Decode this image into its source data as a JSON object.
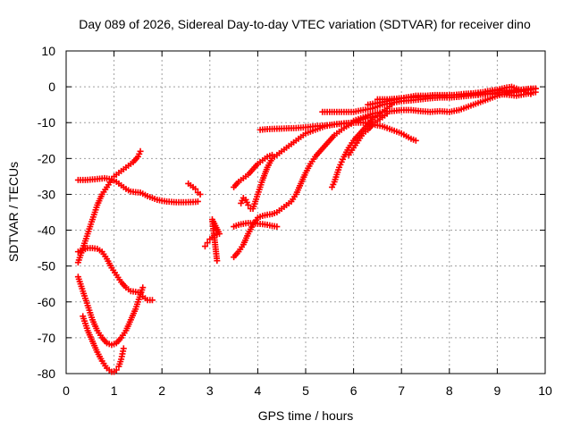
{
  "chart_data": {
    "type": "scatter",
    "title": "Day 089 of 2026, Sidereal Day-to-day VTEC variation (SDTVAR) for receiver dino",
    "xlabel": "GPS time / hours",
    "ylabel": "SDTVAR / TECUs",
    "xlim": [
      0,
      10
    ],
    "ylim": [
      -80,
      10
    ],
    "xticks": [
      "0",
      "1",
      "2",
      "3",
      "4",
      "5",
      "6",
      "7",
      "8",
      "9",
      "10"
    ],
    "yticks": [
      "10",
      "0",
      "-10",
      "-20",
      "-30",
      "-40",
      "-50",
      "-60",
      "-70",
      "-80"
    ],
    "grid": true,
    "marker": "plus",
    "color": "#ff0000",
    "series": [
      {
        "x": [
          0.25,
          0.35,
          0.45,
          0.55,
          0.65,
          0.75,
          0.85,
          0.95,
          1.0,
          1.1,
          1.2,
          1.3,
          1.4,
          1.5,
          1.55
        ],
        "y": [
          -49,
          -45,
          -41,
          -37,
          -33,
          -30,
          -28,
          -26,
          -25,
          -24,
          -23,
          -22,
          -21,
          -19.5,
          -18
        ]
      },
      {
        "x": [
          0.25,
          0.4,
          0.6,
          0.8,
          0.95,
          1.05,
          1.15,
          1.25,
          1.35,
          1.45,
          1.55,
          1.7,
          1.9,
          2.1,
          2.3,
          2.5,
          2.7,
          2.75
        ],
        "y": [
          -26,
          -26,
          -25.8,
          -25.5,
          -25.8,
          -26.5,
          -27.5,
          -28.5,
          -29.2,
          -29.4,
          -29.5,
          -30.5,
          -31.5,
          -32,
          -32.2,
          -32.2,
          -32.1,
          -32
        ]
      },
      {
        "x": [
          0.25,
          0.35,
          0.45,
          0.55,
          0.65,
          0.75,
          0.85,
          0.95,
          1.05,
          1.15,
          1.25,
          1.35,
          1.45,
          1.55,
          1.6,
          1.7,
          1.8
        ],
        "y": [
          -46,
          -45.5,
          -45,
          -45,
          -45.2,
          -46,
          -48,
          -50.5,
          -52.5,
          -54.5,
          -56,
          -57,
          -57.2,
          -57.5,
          -58.5,
          -59.5,
          -59.5
        ]
      },
      {
        "x": [
          0.25,
          0.35,
          0.45,
          0.55,
          0.65,
          0.75,
          0.85,
          0.95,
          1.05,
          1.15,
          1.25,
          1.35,
          1.45,
          1.55,
          1.6
        ],
        "y": [
          -53,
          -57,
          -61,
          -65,
          -68,
          -70,
          -71.5,
          -72,
          -71.5,
          -70,
          -68,
          -65,
          -62,
          -58,
          -56
        ]
      },
      {
        "x": [
          0.35,
          0.45,
          0.55,
          0.65,
          0.75,
          0.85,
          0.9,
          0.95,
          1.0,
          1.05,
          1.1,
          1.15,
          1.2
        ],
        "y": [
          -64,
          -68,
          -71,
          -74,
          -76.5,
          -78.5,
          -79,
          -79.5,
          -79.5,
          -79,
          -78,
          -76,
          -73
        ]
      },
      {
        "x": [
          2.55,
          2.6,
          2.65,
          2.7,
          2.75,
          2.8
        ],
        "y": [
          -27,
          -27.5,
          -28,
          -28.5,
          -29.5,
          -30
        ]
      },
      {
        "x": [
          2.9,
          2.95,
          3.0,
          3.05,
          3.1,
          3.15,
          3.2,
          3.05,
          3.15
        ],
        "y": [
          -44.5,
          -43.5,
          -42.5,
          -42,
          -41.5,
          -41.2,
          -41,
          -37,
          -48.5
        ]
      },
      {
        "x": [
          3.5,
          3.6,
          3.7,
          3.8,
          3.9,
          4.0,
          4.1,
          4.2,
          4.3
        ],
        "y": [
          -28,
          -26.5,
          -25.5,
          -24.5,
          -23,
          -21.5,
          -20.5,
          -19.5,
          -19
        ]
      },
      {
        "x": [
          3.65,
          3.7,
          3.75,
          3.8,
          3.85
        ],
        "y": [
          -32.5,
          -31,
          -31.5,
          -33,
          -34
        ]
      },
      {
        "x": [
          3.5,
          3.6,
          3.7,
          3.8,
          3.9,
          4.0,
          4.1,
          4.2,
          4.3,
          4.4
        ],
        "y": [
          -39,
          -38.5,
          -38.2,
          -38,
          -38.1,
          -38.2,
          -38.3,
          -38.5,
          -38.8,
          -39
        ]
      },
      {
        "x": [
          3.5,
          3.6,
          3.7,
          3.8,
          3.9,
          4.0,
          4.1,
          4.2,
          4.3,
          4.4,
          4.5,
          4.6,
          4.7,
          4.8,
          4.9,
          5.0,
          5.1,
          5.2,
          5.3,
          5.4,
          5.5,
          5.6,
          5.7,
          5.8,
          5.9,
          6.0,
          6.2,
          6.4,
          6.6
        ],
        "y": [
          -47.5,
          -46,
          -44,
          -41,
          -38.5,
          -36.5,
          -36,
          -35.7,
          -35.5,
          -35,
          -34,
          -33,
          -32,
          -30,
          -27,
          -24,
          -21.5,
          -19.5,
          -18,
          -16.5,
          -15,
          -13.5,
          -12.5,
          -11.5,
          -10.7,
          -10,
          -9,
          -8.3,
          -8
        ]
      },
      {
        "x": [
          3.9,
          4.0,
          4.1,
          4.2,
          4.3,
          4.4,
          4.5,
          4.6,
          4.7,
          4.8,
          4.9,
          5.0,
          5.2,
          5.4,
          5.6,
          5.8,
          6.0,
          6.2,
          6.4,
          6.6,
          6.8,
          7.0,
          7.2,
          7.3
        ],
        "y": [
          -34,
          -30,
          -26,
          -22.5,
          -20,
          -19,
          -18,
          -17,
          -16,
          -15,
          -14,
          -13,
          -12,
          -11,
          -10.5,
          -10.2,
          -10,
          -10,
          -10.5,
          -11,
          -12,
          -13,
          -14.5,
          -15
        ]
      },
      {
        "x": [
          4.05,
          4.2,
          4.4,
          4.6,
          4.8,
          5.0,
          5.2,
          5.4,
          5.6,
          5.8,
          6.0,
          6.1
        ],
        "y": [
          -12,
          -11.8,
          -11.7,
          -11.6,
          -11.5,
          -11.3,
          -11,
          -10.8,
          -10.5,
          -10.2,
          -10,
          -9.5
        ]
      },
      {
        "x": [
          5.55,
          5.6,
          5.65,
          5.7,
          5.75,
          5.8,
          5.9,
          6.0,
          6.1,
          6.2,
          6.3,
          6.4,
          6.5,
          6.6,
          6.7,
          6.8
        ],
        "y": [
          -28,
          -26.5,
          -24.5,
          -22.5,
          -21,
          -19.5,
          -17,
          -15,
          -13.5,
          -12,
          -10.5,
          -9,
          -8,
          -7,
          -6,
          -5
        ]
      },
      {
        "x": [
          5.9,
          6.0,
          6.1,
          6.2,
          6.3,
          6.4,
          6.5,
          6.6,
          6.7
        ],
        "y": [
          -19,
          -17,
          -15,
          -13,
          -12,
          -10.5,
          -9.5,
          -8.5,
          -7.5
        ]
      },
      {
        "x": [
          5.35,
          5.6,
          5.8,
          6.0,
          6.2,
          6.4,
          6.6,
          6.8,
          7.0,
          7.2,
          7.4,
          7.6,
          7.8,
          8.0,
          8.2,
          8.4,
          8.6,
          8.8,
          9.0,
          9.2,
          9.4,
          9.6,
          9.8
        ],
        "y": [
          -7,
          -7,
          -7,
          -7,
          -6.5,
          -6,
          -5,
          -4.5,
          -4,
          -3.8,
          -3.5,
          -3.2,
          -3,
          -3,
          -2.8,
          -2.5,
          -2.3,
          -2,
          -2,
          -2.2,
          -2.5,
          -2,
          -1.5
        ]
      },
      {
        "x": [
          6.0,
          6.2,
          6.4,
          6.6,
          6.8,
          7.0,
          7.2,
          7.4,
          7.6,
          7.8,
          8.0,
          8.2,
          8.4,
          8.6,
          8.8,
          9.0,
          9.2,
          9.4,
          9.6,
          9.8
        ],
        "y": [
          -9.5,
          -8.5,
          -7.5,
          -7,
          -6.8,
          -6.5,
          -6.5,
          -6.8,
          -7,
          -6.8,
          -7,
          -6.5,
          -5.5,
          -4.5,
          -3.5,
          -2.5,
          -1.8,
          -1.5,
          -1,
          -0.5
        ]
      },
      {
        "x": [
          6.3,
          6.5,
          6.7,
          6.9,
          7.1,
          7.3,
          7.5,
          7.7,
          7.9,
          8.1,
          8.3,
          8.5,
          8.7,
          8.9,
          9.1,
          9.3,
          9.5,
          9.7,
          9.8
        ],
        "y": [
          -5,
          -4.5,
          -4,
          -3.5,
          -3,
          -2.5,
          -2.5,
          -2.3,
          -2.3,
          -2.3,
          -2,
          -1.8,
          -1.5,
          -1.2,
          -1,
          -1,
          -0.8,
          -0.5,
          -0.5
        ]
      },
      {
        "x": [
          6.5,
          6.7,
          6.9,
          7.1,
          7.3,
          7.5,
          7.7,
          7.9,
          8.1,
          8.3,
          8.5,
          8.7,
          8.9,
          9.1,
          9.3,
          9.5,
          9.7,
          9.8
        ],
        "y": [
          -3.5,
          -3.5,
          -3.3,
          -3,
          -3,
          -2.8,
          -2.5,
          -2.5,
          -2.3,
          -2.2,
          -2,
          -2,
          -1.8,
          -1.5,
          -1.3,
          -1,
          -0.8,
          -0.5
        ]
      },
      {
        "x": [
          8.6,
          8.7,
          8.8,
          8.9,
          9.0,
          9.1,
          9.2,
          9.3,
          9.4,
          9.5,
          9.6,
          9.7
        ],
        "y": [
          -2,
          -1.5,
          -1.2,
          -1,
          -0.8,
          -0.5,
          -0.2,
          0,
          -0.5,
          -1,
          -1.5,
          -2
        ]
      }
    ]
  }
}
